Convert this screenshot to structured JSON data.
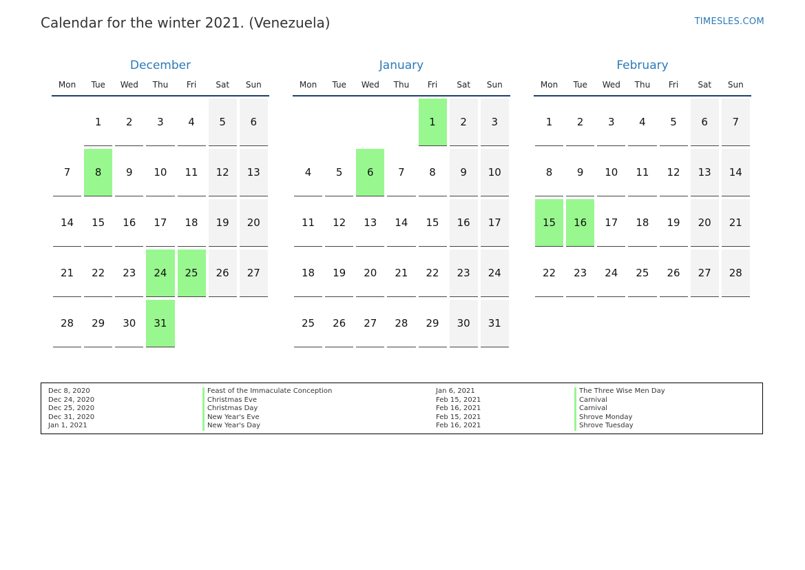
{
  "header": {
    "title": "Calendar for the winter 2021. (Venezuela)",
    "site": "TIMESLES.COM"
  },
  "colors": {
    "accent": "#2a7ab8",
    "holiday": "#98f78f",
    "weekend": "#f3f3f3",
    "header_rule": "#1c3f6e"
  },
  "weekdays": [
    "Mon",
    "Tue",
    "Wed",
    "Thu",
    "Fri",
    "Sat",
    "Sun"
  ],
  "months": [
    {
      "name": "December",
      "start_offset": 1,
      "days": 31,
      "holidays": [
        8,
        24,
        25,
        31
      ]
    },
    {
      "name": "January",
      "start_offset": 4,
      "days": 31,
      "holidays": [
        1,
        6
      ]
    },
    {
      "name": "February",
      "start_offset": 0,
      "days": 28,
      "holidays": [
        15,
        16
      ]
    }
  ],
  "legend": {
    "left": [
      {
        "date": "Dec 8, 2020",
        "name": "Feast of the Immaculate Conception"
      },
      {
        "date": "Dec 24, 2020",
        "name": "Christmas Eve"
      },
      {
        "date": "Dec 25, 2020",
        "name": "Christmas Day"
      },
      {
        "date": "Dec 31, 2020",
        "name": "New Year's Eve"
      },
      {
        "date": "Jan 1, 2021",
        "name": "New Year's Day"
      }
    ],
    "right": [
      {
        "date": "Jan 6, 2021",
        "name": "The Three Wise Men Day"
      },
      {
        "date": "Feb 15, 2021",
        "name": "Carnival"
      },
      {
        "date": "Feb 16, 2021",
        "name": "Carnival"
      },
      {
        "date": "Feb 15, 2021",
        "name": "Shrove Monday"
      },
      {
        "date": "Feb 16, 2021",
        "name": "Shrove Tuesday"
      }
    ]
  }
}
